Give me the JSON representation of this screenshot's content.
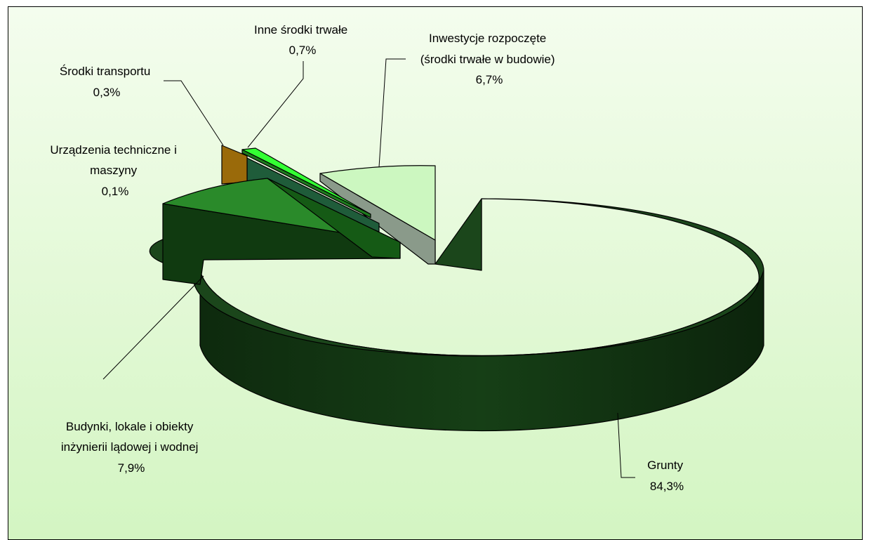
{
  "chart_data": {
    "type": "pie",
    "title": "",
    "slices": [
      {
        "label_lines": [
          "Grunty"
        ],
        "value_label": "84,3%",
        "value": 84.3,
        "color": "#1a4d1a"
      },
      {
        "label_lines": [
          "Inwestycje rozpoczęte",
          "(środki trwałe w budowie)"
        ],
        "value_label": "6,7%",
        "value": 6.7,
        "color": "#ccf7c0"
      },
      {
        "label_lines": [
          "Inne środki trwałe"
        ],
        "value_label": "0,7%",
        "value": 0.7,
        "color": "#33ff33"
      },
      {
        "label_lines": [
          "Środki transportu"
        ],
        "value_label": "0,3%",
        "value": 0.3,
        "color": "#9a6a0a"
      },
      {
        "label_lines": [
          "Urządzenia techniczne i",
          "maszyny"
        ],
        "value_label": "0,1%",
        "value": 0.1,
        "color": "#1f5c3a"
      },
      {
        "label_lines": [
          "Budynki, lokale i obiekty",
          "inżynierii lądowej i wodnej"
        ],
        "value_label": "7,9%",
        "value": 7.9,
        "color": "#2a8a2a"
      }
    ],
    "legend": "none",
    "style": "3d-exploded-pie"
  }
}
